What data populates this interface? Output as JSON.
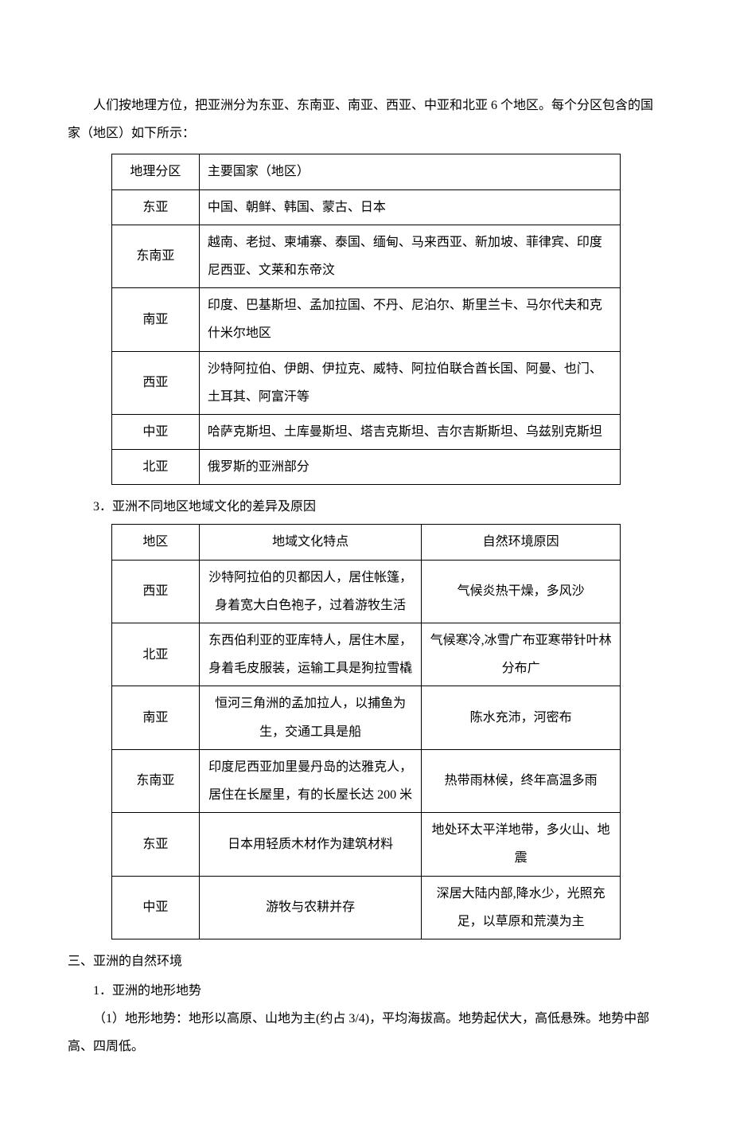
{
  "intro": "人们按地理方位，把亚洲分为东亚、东南亚、南亚、西亚、中亚和北亚 6 个地区。每个分区包含的国家（地区）如下所示：",
  "table1": {
    "header": {
      "c1": "地理分区",
      "c2": "主要国家（地区）"
    },
    "rows": [
      {
        "c1": "东亚",
        "c2": "中国、朝鲜、韩国、蒙古、日本"
      },
      {
        "c1": "东南亚",
        "c2": "越南、老挝、柬埔寨、泰国、缅甸、马来西亚、新加坡、菲律宾、印度尼西亚、文莱和东帝汶"
      },
      {
        "c1": "南亚",
        "c2": "印度、巴基斯坦、孟加拉国、不丹、尼泊尔、斯里兰卡、马尔代夫和克什米尔地区"
      },
      {
        "c1": "西亚",
        "c2": "沙特阿拉伯、伊朗、伊拉克、威特、阿拉伯联合酋长国、阿曼、也门、土耳其、阿富汗等"
      },
      {
        "c1": "中亚",
        "c2": "哈萨克斯坦、土库曼斯坦、塔吉克斯坦、吉尔吉斯斯坦、乌兹别克斯坦"
      },
      {
        "c1": "北亚",
        "c2": "俄罗斯的亚洲部分"
      }
    ]
  },
  "heading_table2": "3．亚洲不同地区地域文化的差异及原因",
  "table2": {
    "header": {
      "c1": "地区",
      "c2": "地域文化特点",
      "c3": "自然环境原因"
    },
    "rows": [
      {
        "c1": "西亚",
        "c2": "沙特阿拉伯的贝都因人，居住帐篷，身着宽大白色袍子，过着游牧生活",
        "c3": "气候炎热干燥，多风沙"
      },
      {
        "c1": "北亚",
        "c2": "东西伯利亚的亚库特人，居住木屋，身着毛皮服装，运输工具是狗拉雪橇",
        "c3": "气候寒冷,冰雪广布亚寒带针叶林分布广"
      },
      {
        "c1": "南亚",
        "c2": "恒河三角洲的孟加拉人，以捕鱼为生，交通工具是船",
        "c3": "陈水充沛，河密布"
      },
      {
        "c1": "东南亚",
        "c2": "印度尼西亚加里曼丹岛的达雅克人，居住在长屋里，有的长屋长达 200 米",
        "c3": "热带雨林候，终年高温多雨"
      },
      {
        "c1": "东亚",
        "c2": "日本用轻质木材作为建筑材料",
        "c3": "地处环太平洋地带，多火山、地震"
      },
      {
        "c1": "中亚",
        "c2": "游牧与农耕并存",
        "c3": "深居大陆内部,降水少，光照充足，以草原和荒漠为主"
      }
    ]
  },
  "section3_heading": "三、亚洲的自然环境",
  "section3_sub1": "1．亚洲的地形地势",
  "section3_sub1_body": "（1）地形地势：地形以高原、山地为主(约占 3/4)，平均海拔高。地势起伏大，高低悬殊。地势中部高、四周低。"
}
